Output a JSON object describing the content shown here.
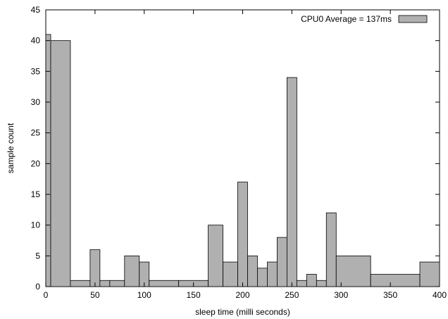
{
  "chart_data": {
    "type": "bar",
    "xlabel": "sleep time (milli seconds)",
    "ylabel": "sample count",
    "xlim": [
      0,
      400
    ],
    "ylim": [
      0,
      45
    ],
    "xticks": [
      0,
      50,
      100,
      150,
      200,
      250,
      300,
      350,
      400
    ],
    "yticks": [
      0,
      5,
      10,
      15,
      20,
      25,
      30,
      35,
      40,
      45
    ],
    "legend_placement": "top-right",
    "series": [
      {
        "name": "CPU0 Average = 137ms",
        "color": "#b0b0b0",
        "bins": [
          {
            "x0": 0,
            "x1": 5,
            "value": 41
          },
          {
            "x0": 5,
            "x1": 25,
            "value": 40
          },
          {
            "x0": 25,
            "x1": 45,
            "value": 1
          },
          {
            "x0": 45,
            "x1": 55,
            "value": 6
          },
          {
            "x0": 55,
            "x1": 65,
            "value": 1
          },
          {
            "x0": 65,
            "x1": 80,
            "value": 1
          },
          {
            "x0": 80,
            "x1": 95,
            "value": 5
          },
          {
            "x0": 95,
            "x1": 105,
            "value": 4
          },
          {
            "x0": 105,
            "x1": 135,
            "value": 1
          },
          {
            "x0": 135,
            "x1": 165,
            "value": 1
          },
          {
            "x0": 165,
            "x1": 180,
            "value": 10
          },
          {
            "x0": 180,
            "x1": 195,
            "value": 4
          },
          {
            "x0": 195,
            "x1": 205,
            "value": 17
          },
          {
            "x0": 205,
            "x1": 215,
            "value": 5
          },
          {
            "x0": 215,
            "x1": 225,
            "value": 3
          },
          {
            "x0": 225,
            "x1": 235,
            "value": 4
          },
          {
            "x0": 235,
            "x1": 245,
            "value": 8
          },
          {
            "x0": 245,
            "x1": 255,
            "value": 34
          },
          {
            "x0": 255,
            "x1": 265,
            "value": 1
          },
          {
            "x0": 265,
            "x1": 275,
            "value": 2
          },
          {
            "x0": 275,
            "x1": 285,
            "value": 1
          },
          {
            "x0": 285,
            "x1": 295,
            "value": 12
          },
          {
            "x0": 295,
            "x1": 330,
            "value": 5
          },
          {
            "x0": 330,
            "x1": 380,
            "value": 2
          },
          {
            "x0": 380,
            "x1": 400,
            "value": 4
          }
        ]
      }
    ]
  }
}
